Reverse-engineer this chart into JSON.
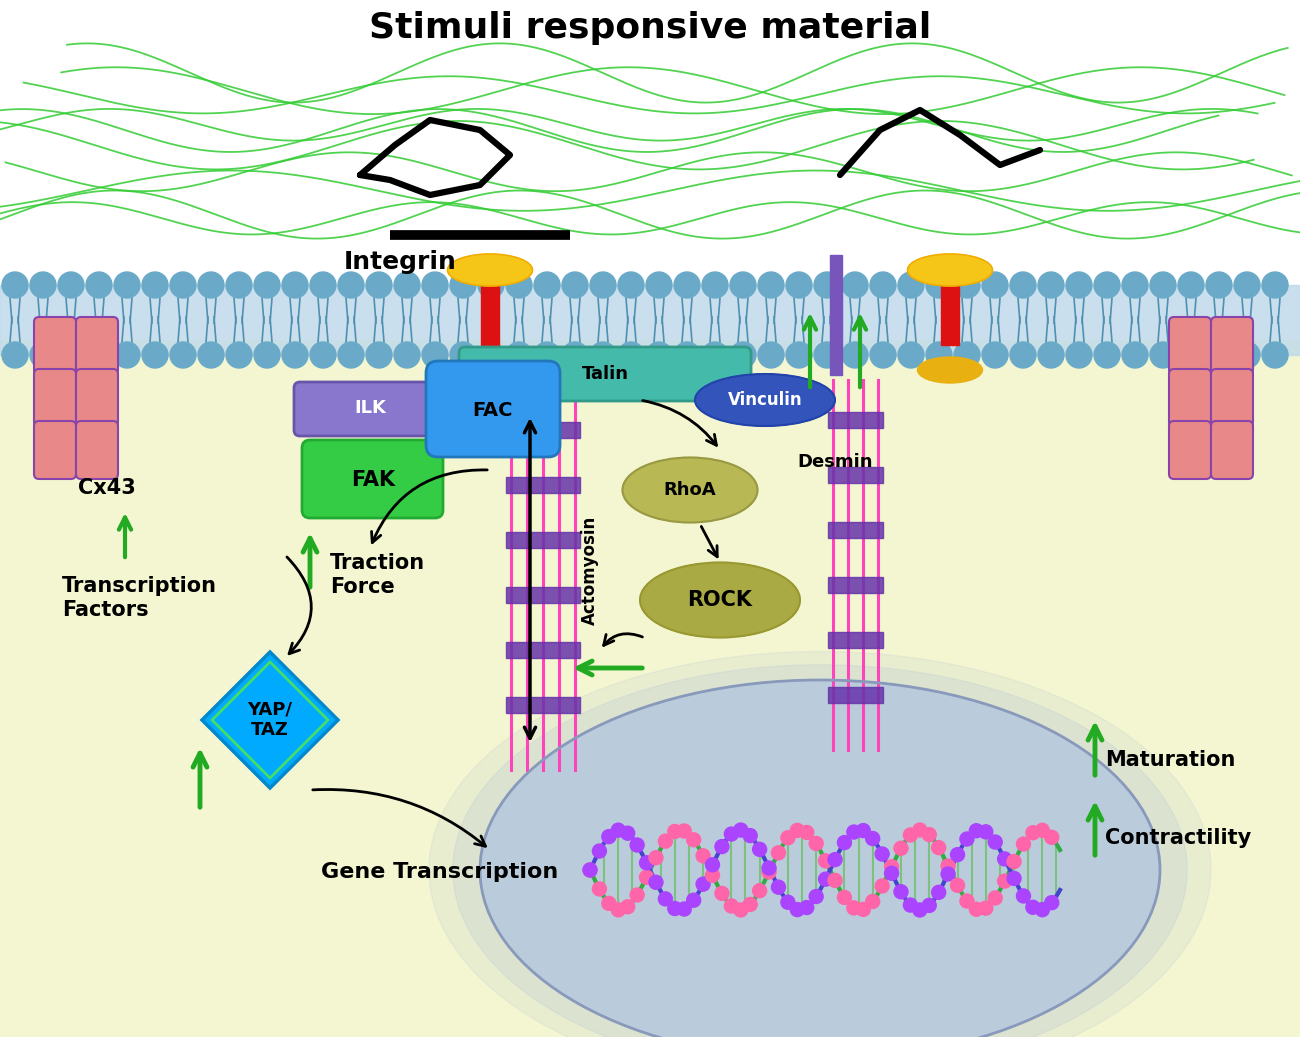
{
  "title": "Stimuli responsive material",
  "bg_cell": "#f5f7d5",
  "bg_outside": "#ffffff",
  "green_color": "#22aa22",
  "membrane_head_color": "#6aaac8",
  "membrane_tail_color": "#4a88a8",
  "integrin_label": "Integrin",
  "ilk_label": "ILK",
  "fak_label": "FAK",
  "fac_label": "FAC",
  "talin_label": "Talin",
  "vinculin_label": "Vinculin",
  "desmin_label": "Desmin",
  "rhoa_label": "RhoA",
  "rock_label": "ROCK",
  "actomyosin_label": "Actomyosin",
  "cx43_label": "Cx43",
  "yap_taz_label": "YAP/\nTAZ",
  "tf_label": "Transcription\nFactors",
  "traction_label": "Traction\nForce",
  "gene_trans_label": "Gene Transcription",
  "maturation_label": "Maturation",
  "contractility_label": "Contractility"
}
